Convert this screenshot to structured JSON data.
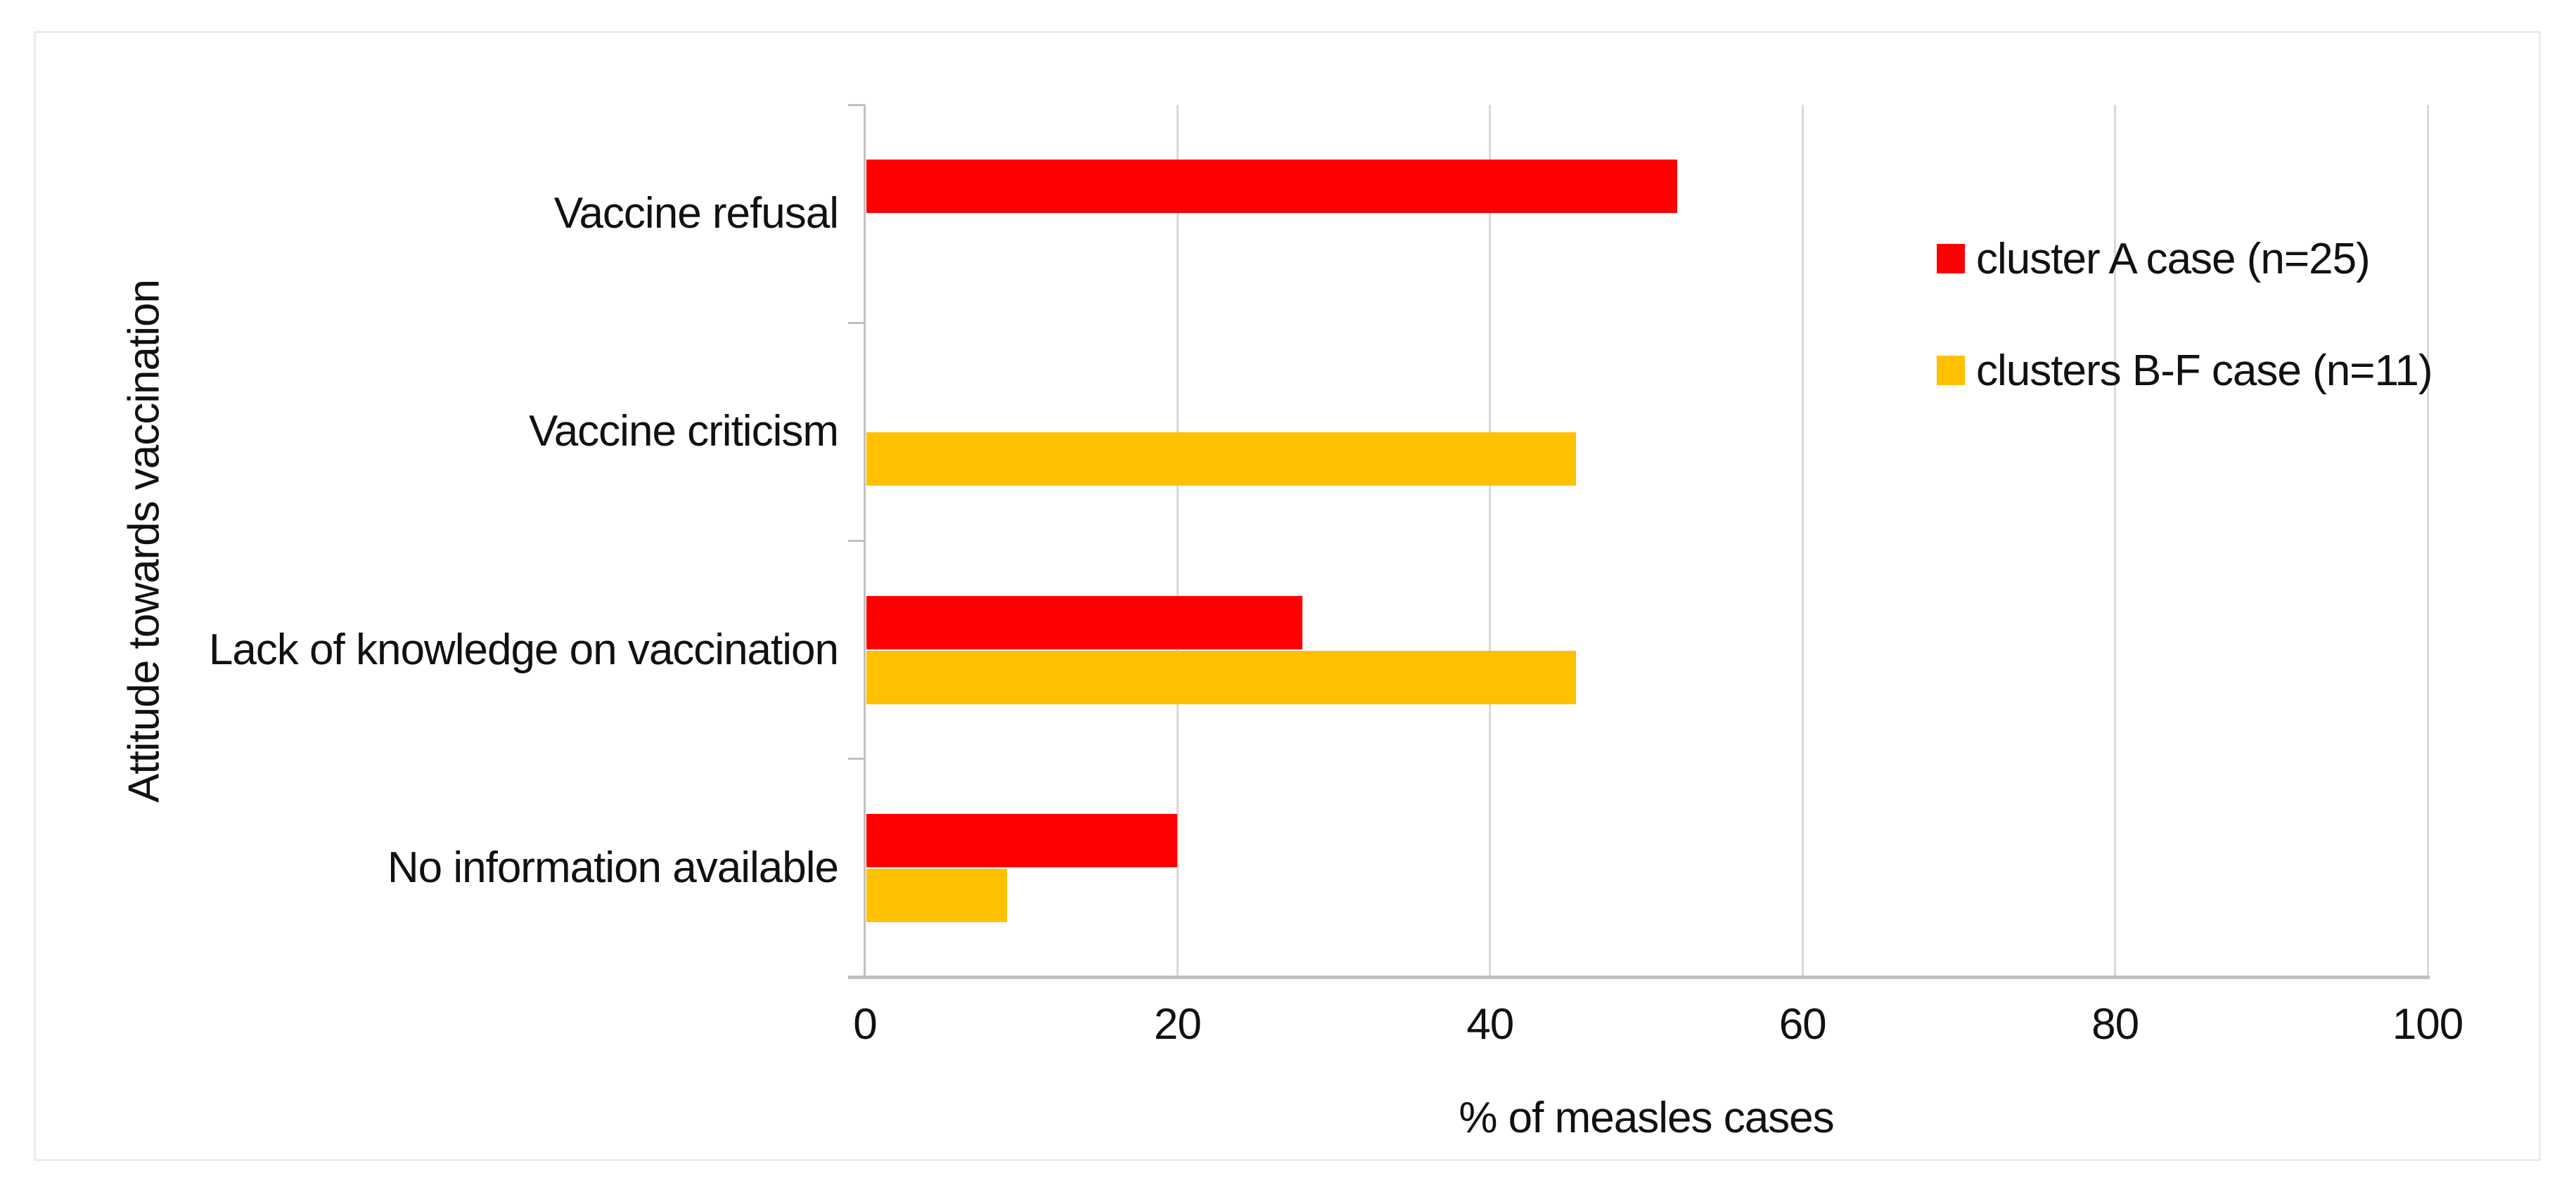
{
  "chart_data": {
    "type": "bar",
    "orientation": "horizontal",
    "categories": [
      "Vaccine refusal",
      "Vaccine criticism",
      "Lack of knowledge on vaccination",
      "No information available"
    ],
    "series": [
      {
        "name": "cluster A case (n=25)",
        "color": "#FF0000",
        "values": [
          52,
          0,
          28,
          20
        ]
      },
      {
        "name": "clusters B-F case (n=11)",
        "color": "#FFC000",
        "values": [
          0,
          45.5,
          45.5,
          9.1
        ]
      }
    ],
    "xlabel": "% of measles cases",
    "ylabel": "Attitude towards vaccination",
    "xlim": [
      0,
      100
    ],
    "xticks": [
      0,
      20,
      40,
      60,
      80,
      100
    ],
    "grid": true,
    "legend_position": "inside-upper-right"
  },
  "colors": {
    "background": "#FFFFFF",
    "figure_border": "#ECECEC",
    "gridline": "#D9D9D9",
    "axis_line": "#BFBFBF",
    "text": "#111111",
    "series_a_red": "#FF0000",
    "series_bf_gold": "#FFC000"
  }
}
